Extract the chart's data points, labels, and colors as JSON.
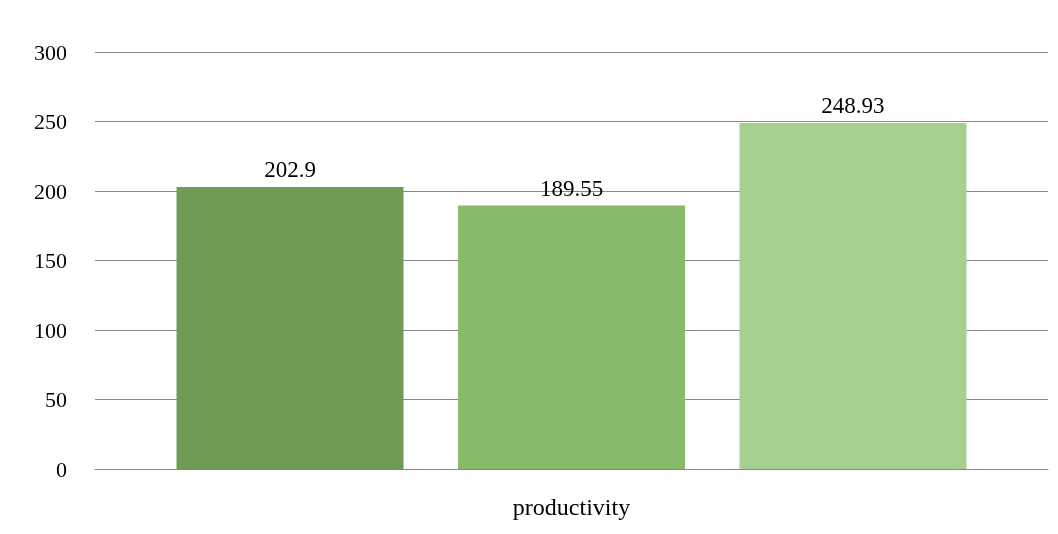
{
  "chart_data": {
    "type": "bar",
    "categories": [
      "productivity"
    ],
    "series": [
      {
        "color": "#6f9c55",
        "values": [
          202.9
        ]
      },
      {
        "color": "#87bb6a",
        "values": [
          189.55
        ]
      },
      {
        "color": "#a5d08f",
        "values": [
          248.93
        ]
      }
    ],
    "ylim": [
      0,
      300
    ],
    "yticks": [
      0,
      50,
      100,
      150,
      200,
      250,
      300
    ],
    "grid": "y",
    "data_labels": true
  }
}
